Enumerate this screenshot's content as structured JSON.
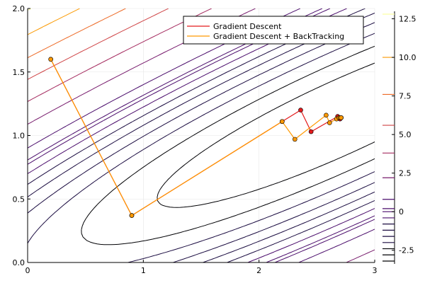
{
  "chart_data": {
    "type": "line",
    "title": "",
    "xlabel": "",
    "ylabel": "",
    "xlim": [
      0,
      3
    ],
    "ylim": [
      0,
      2
    ],
    "x_ticks": [
      0,
      1,
      2,
      3
    ],
    "y_ticks": [
      0.0,
      0.5,
      1.0,
      1.5,
      2.0
    ],
    "x_tick_labels": [
      "0",
      "1",
      "2",
      "3"
    ],
    "y_tick_labels": [
      "0.0",
      "0.5",
      "1.0",
      "1.5",
      "2.0"
    ],
    "grid": true,
    "legend_position": "top-right",
    "legend": [
      {
        "name": "Gradient Descent",
        "color": "#e41a1c"
      },
      {
        "name": "Gradient Descent + BackTracking",
        "color": "#ff9900"
      }
    ],
    "contour": {
      "levels": [
        -3.2,
        -2.8,
        -2.4,
        -2.0,
        -1.6,
        -1.2,
        -0.8,
        -0.4,
        0.0,
        0.2,
        0.8,
        2.2,
        3.8,
        5.6,
        7.6,
        10.0,
        12.8
      ],
      "colorbar_ticks": [
        -2.5,
        0,
        2.5,
        5.0,
        7.5,
        10.0,
        12.5
      ],
      "colorbar_tick_labels": [
        "-2.5",
        "0",
        "2.5",
        "5.0",
        "7.5",
        "10.0",
        "12.5"
      ],
      "colormap": [
        "#000004",
        "#1b0c41",
        "#4a0c6b",
        "#781c6d",
        "#a52c60",
        "#cf4446",
        "#ed6925",
        "#fb9b06",
        "#f7d13d",
        "#fcffa4"
      ]
    },
    "series": [
      {
        "name": "Gradient Descent",
        "color": "#e41a1c",
        "x": [
          0.2,
          0.9,
          2.2,
          2.36,
          2.45,
          2.68,
          2.7,
          2.71,
          2.71
        ],
        "y": [
          1.6,
          0.37,
          1.11,
          1.2,
          1.03,
          1.15,
          1.13,
          1.14,
          1.14
        ]
      },
      {
        "name": "Gradient Descent + BackTracking",
        "color": "#ff9900",
        "x": [
          0.2,
          0.9,
          2.2,
          2.31,
          2.58,
          2.61,
          2.67,
          2.69,
          2.7,
          2.71
        ],
        "y": [
          1.6,
          0.37,
          1.11,
          0.97,
          1.16,
          1.1,
          1.13,
          1.14,
          1.14,
          1.14
        ]
      }
    ]
  }
}
